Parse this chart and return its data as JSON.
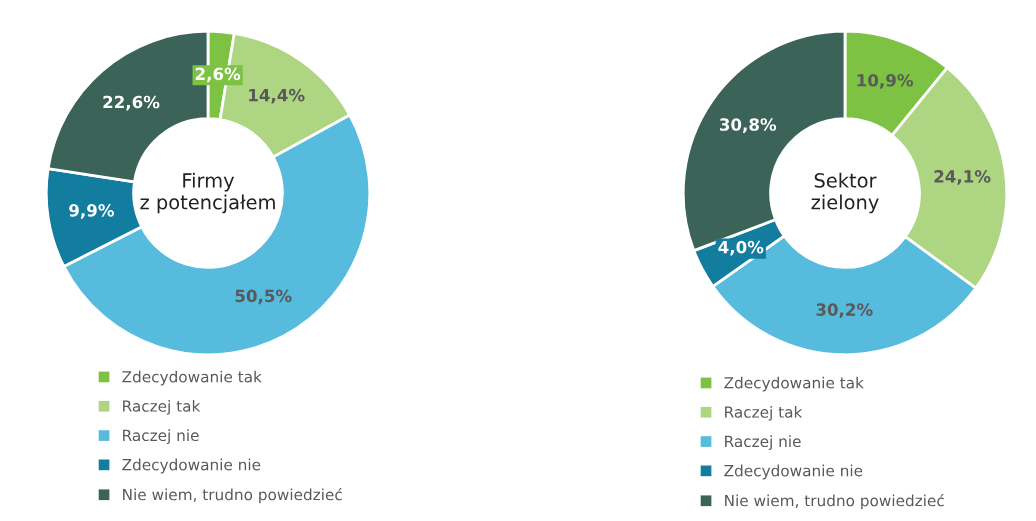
{
  "chart_data": [
    {
      "type": "donut",
      "title": "Firmy\nz potencjałem",
      "categories": [
        "Zdecydowanie tak",
        "Raczej tak",
        "Raczej nie",
        "Zdecydowanie nie",
        "Nie wiem, trudno powiedzieć"
      ],
      "values": [
        2.6,
        14.4,
        50.5,
        9.9,
        22.6
      ],
      "value_labels": [
        "2,6%",
        "14,4%",
        "50,5%",
        "9,9%",
        "22,6%"
      ],
      "colors": [
        "#7dc242",
        "#aed581",
        "#56bbdc",
        "#127d9e",
        "#3b6357"
      ],
      "legend": "bottom"
    },
    {
      "type": "donut",
      "title": "Sektor\nzielony",
      "categories": [
        "Zdecydowanie tak",
        "Raczej tak",
        "Raczej nie",
        "Zdecydowanie nie",
        "Nie wiem, trudno powiedzieć"
      ],
      "values": [
        10.9,
        24.1,
        30.2,
        4.0,
        30.8
      ],
      "value_labels": [
        "10,9%",
        "24,1%",
        "30,2%",
        "4,0%",
        "30,8%"
      ],
      "colors": [
        "#7dc242",
        "#aed581",
        "#56bbdc",
        "#127d9e",
        "#3b6357"
      ],
      "legend": "bottom"
    }
  ]
}
